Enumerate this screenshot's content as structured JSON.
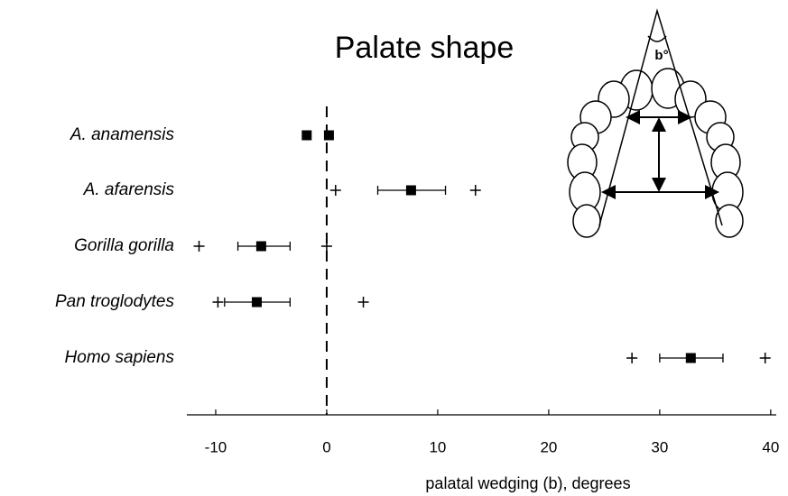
{
  "chart_data": {
    "type": "dot",
    "title": "Palate shape",
    "x_label": "palatal wedging (b), degrees",
    "annotation": "b°",
    "categories": [
      "A. anamensis",
      "A. afarensis",
      "Gorilla gorilla",
      "Pan troglodytes",
      "Homo sapiens"
    ],
    "points": [
      [
        -1.8,
        0.2
      ],
      [
        7.6
      ],
      [
        -5.9
      ],
      [
        -6.3
      ],
      [
        32.8
      ]
    ],
    "error_bars": [
      null,
      [
        4.6,
        10.7
      ],
      [
        -8.0,
        -3.3
      ],
      [
        -9.2,
        -3.3
      ],
      [
        30.0,
        35.7
      ]
    ],
    "ranges": [
      null,
      [
        0.8,
        13.4
      ],
      [
        -11.5,
        0
      ],
      [
        -9.8,
        3.3
      ],
      [
        27.5,
        39.5
      ]
    ],
    "reference_line": 0,
    "xlim": [
      -12.6,
      40.5
    ],
    "xticks": [
      -10,
      0,
      10,
      20,
      30,
      40
    ],
    "color": "#000000"
  }
}
